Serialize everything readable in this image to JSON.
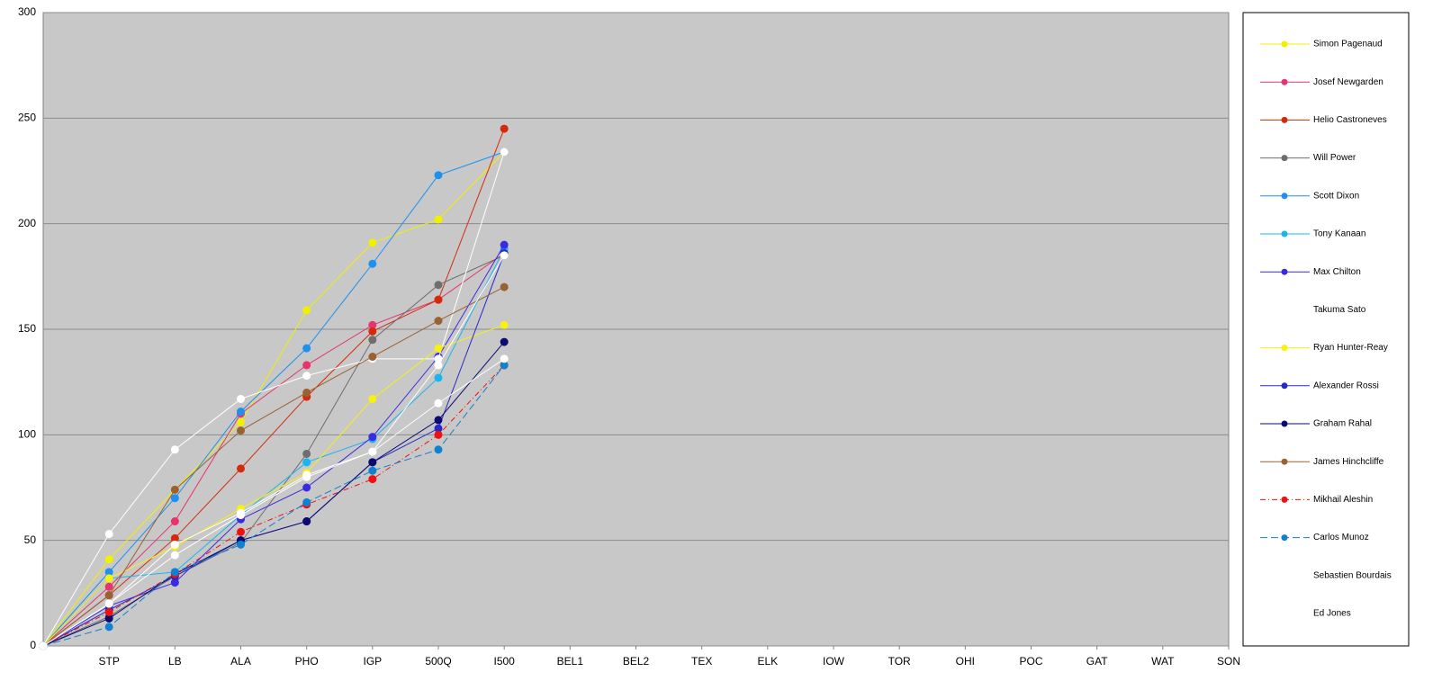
{
  "chart_data": {
    "type": "line",
    "categories": [
      null,
      "STP",
      "LB",
      "ALA",
      "PHO",
      "IGP",
      "500Q",
      "I500",
      "BEL1",
      "BEL2",
      "TEX",
      "ELK",
      "IOW",
      "TOR",
      "OHI",
      "POC",
      "GAT",
      "WAT",
      "SON"
    ],
    "ylim": [
      0,
      300
    ],
    "yticks": [
      0,
      50,
      100,
      150,
      200,
      250,
      300
    ],
    "grid": true,
    "legend": "right",
    "series": [
      {
        "name": "Simon Pagenaud",
        "color": "#f0f000",
        "values": [
          0,
          41,
          74,
          106,
          159,
          191,
          202,
          234,
          null,
          null,
          null,
          null,
          null,
          null,
          null,
          null,
          null,
          null,
          null
        ]
      },
      {
        "name": "Josef Newgarden",
        "color": "#e8336c",
        "values": [
          0,
          28,
          59,
          110,
          133,
          152,
          164,
          186,
          null,
          null,
          null,
          null,
          null,
          null,
          null,
          null,
          null,
          null,
          null
        ]
      },
      {
        "name": "Helio Castroneves",
        "color": "#d42a0a",
        "values": [
          0,
          24,
          51,
          84,
          118,
          149,
          164,
          245,
          null,
          null,
          null,
          null,
          null,
          null,
          null,
          null,
          null,
          null,
          null
        ]
      },
      {
        "name": "Will Power",
        "color": "#6e6e6e",
        "values": [
          0,
          14,
          33,
          49,
          91,
          145,
          171,
          185,
          null,
          null,
          null,
          null,
          null,
          null,
          null,
          null,
          null,
          null,
          null
        ]
      },
      {
        "name": "Scott Dixon",
        "color": "#1e90f0",
        "values": [
          0,
          35,
          70,
          111,
          141,
          181,
          223,
          234,
          null,
          null,
          null,
          null,
          null,
          null,
          null,
          null,
          null,
          null,
          null
        ]
      },
      {
        "name": "Tony Kanaan",
        "color": "#1ab4f0",
        "values": [
          0,
          32,
          35,
          62,
          87,
          98,
          127,
          188,
          null,
          null,
          null,
          null,
          null,
          null,
          null,
          null,
          null,
          null,
          null
        ]
      },
      {
        "name": "Max Chilton",
        "color": "#3a2ae0",
        "values": [
          0,
          19,
          30,
          60,
          75,
          99,
          137,
          190,
          null,
          null,
          null,
          null,
          null,
          null,
          null,
          null,
          null,
          null,
          null
        ]
      },
      {
        "name": "Takuma Sato",
        "color": "#ffffff",
        "values": [
          0,
          53,
          93,
          117,
          128,
          136,
          136,
          234,
          null,
          null,
          null,
          null,
          null,
          null,
          null,
          null,
          null,
          null,
          null
        ]
      },
      {
        "name": "Ryan Hunter-Reay",
        "color": "#f8f010",
        "values": [
          0,
          32,
          47,
          65,
          82,
          117,
          141,
          152,
          null,
          null,
          null,
          null,
          null,
          null,
          null,
          null,
          null,
          null,
          null
        ]
      },
      {
        "name": "Alexander Rossi",
        "color": "#2828c8",
        "values": [
          0,
          17,
          33,
          50,
          59,
          87,
          103,
          186,
          null,
          null,
          null,
          null,
          null,
          null,
          null,
          null,
          null,
          null,
          null
        ]
      },
      {
        "name": "Graham Rahal",
        "color": "#0a0a70",
        "values": [
          0,
          13,
          34,
          50,
          59,
          87,
          107,
          144,
          null,
          null,
          null,
          null,
          null,
          null,
          null,
          null,
          null,
          null,
          null
        ]
      },
      {
        "name": "James Hinchcliffe",
        "color": "#9a6232",
        "values": [
          0,
          24,
          74,
          102,
          120,
          137,
          154,
          170,
          null,
          null,
          null,
          null,
          null,
          null,
          null,
          null,
          null,
          null,
          null
        ]
      },
      {
        "name": "Mikhail Aleshin",
        "color": "#f01010",
        "dash": "dash-dot",
        "values": [
          0,
          16,
          34,
          54,
          67,
          79,
          100,
          133,
          null,
          null,
          null,
          null,
          null,
          null,
          null,
          null,
          null,
          null,
          null
        ]
      },
      {
        "name": "Carlos Munoz",
        "color": "#1080d0",
        "dash": "dash",
        "values": [
          0,
          9,
          35,
          48,
          68,
          83,
          93,
          133,
          null,
          null,
          null,
          null,
          null,
          null,
          null,
          null,
          null,
          null,
          null
        ]
      },
      {
        "name": "Sebastien Bourdais",
        "color": "#ffffff",
        "values": [
          0,
          20,
          43,
          62,
          80,
          92,
          115,
          136,
          null,
          null,
          null,
          null,
          null,
          null,
          null,
          null,
          null,
          null,
          null
        ]
      },
      {
        "name": "Ed Jones",
        "color": "#ffffff",
        "values": [
          0,
          20,
          48,
          63,
          81,
          92,
          133,
          185,
          null,
          null,
          null,
          null,
          null,
          null,
          null,
          null,
          null,
          null,
          null
        ]
      }
    ]
  }
}
